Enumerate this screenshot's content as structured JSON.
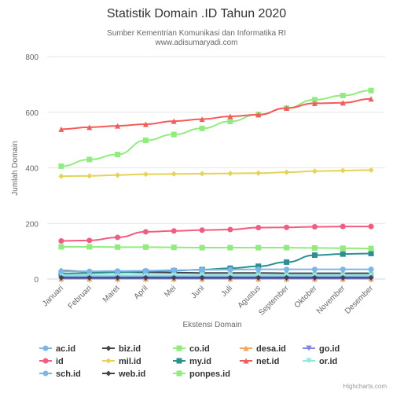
{
  "chart_data": {
    "type": "line",
    "title": "Statistik Domain .ID Tahun 2020",
    "subtitle_lines": [
      "Sumber Kementrian Komunikasi dan Informatika RI",
      "www.adisumaryadi.com"
    ],
    "xlabel": "Ekstensi Domain",
    "ylabel": "Jumlah Domain",
    "ylim": [
      0,
      800
    ],
    "yticks": [
      0,
      200,
      400,
      600,
      800
    ],
    "grid": true,
    "legend_position": "bottom",
    "credits": "Highcharts.com",
    "categories": [
      "Januari",
      "Februari",
      "Maret",
      "April",
      "Mei",
      "Juni",
      "Juli",
      "Agustus",
      "September",
      "Oktober",
      "November",
      "Desember"
    ],
    "series": [
      {
        "name": "ac.id",
        "color": "#7cb5ec",
        "marker": "circle",
        "values": [
          11,
          11,
          11,
          11,
          11,
          11,
          11,
          11,
          11,
          11,
          11,
          11
        ]
      },
      {
        "name": "biz.id",
        "color": "#434348",
        "marker": "diamond",
        "values": [
          30,
          27,
          25,
          24,
          23,
          22,
          22,
          22,
          21,
          21,
          21,
          21
        ]
      },
      {
        "name": "co.id",
        "color": "#90ed7d",
        "marker": "square",
        "values": [
          406,
          430,
          448,
          499,
          520,
          542,
          567,
          592,
          615,
          645,
          660,
          678
        ]
      },
      {
        "name": "desa.id",
        "color": "#f7a35c",
        "marker": "triangle",
        "values": [
          1,
          1,
          1,
          1,
          1,
          1,
          1,
          1,
          1,
          1,
          1,
          1
        ]
      },
      {
        "name": "go.id",
        "color": "#8085e9",
        "marker": "triangle-down",
        "values": [
          2,
          2,
          2,
          2,
          2,
          2,
          2,
          2,
          2,
          2,
          2,
          2
        ]
      },
      {
        "name": "id",
        "color": "#f15c80",
        "marker": "circle",
        "values": [
          137,
          139,
          150,
          170,
          173,
          176,
          178,
          185,
          186,
          188,
          189,
          189
        ]
      },
      {
        "name": "mil.id",
        "color": "#e4d354",
        "marker": "diamond",
        "values": [
          370,
          371,
          374,
          377,
          378,
          379,
          380,
          381,
          384,
          388,
          390,
          392
        ]
      },
      {
        "name": "my.id",
        "color": "#2b908f",
        "marker": "square",
        "values": [
          20,
          22,
          24,
          27,
          30,
          34,
          39,
          46,
          61,
          86,
          90,
          92
        ]
      },
      {
        "name": "net.id",
        "color": "#f45b5b",
        "marker": "triangle",
        "values": [
          539,
          546,
          551,
          557,
          568,
          575,
          585,
          591,
          615,
          632,
          634,
          648
        ]
      },
      {
        "name": "or.id",
        "color": "#91e8e1",
        "marker": "triangle-down",
        "values": [
          15,
          15,
          15,
          15,
          15,
          15,
          15,
          15,
          15,
          15,
          15,
          15
        ]
      },
      {
        "name": "sch.id",
        "color": "#7cb5ec",
        "marker": "circle",
        "values": [
          28,
          28,
          29,
          30,
          32,
          33,
          34,
          35,
          35,
          35,
          35,
          35
        ]
      },
      {
        "name": "web.id",
        "color": "#434348",
        "marker": "diamond",
        "values": [
          5,
          5,
          5,
          5,
          5,
          5,
          5,
          5,
          5,
          5,
          5,
          5
        ]
      },
      {
        "name": "ponpes.id",
        "color": "#90ed7d",
        "marker": "square",
        "values": [
          116,
          116,
          115,
          115,
          114,
          113,
          113,
          113,
          113,
          112,
          111,
          110
        ]
      }
    ]
  }
}
